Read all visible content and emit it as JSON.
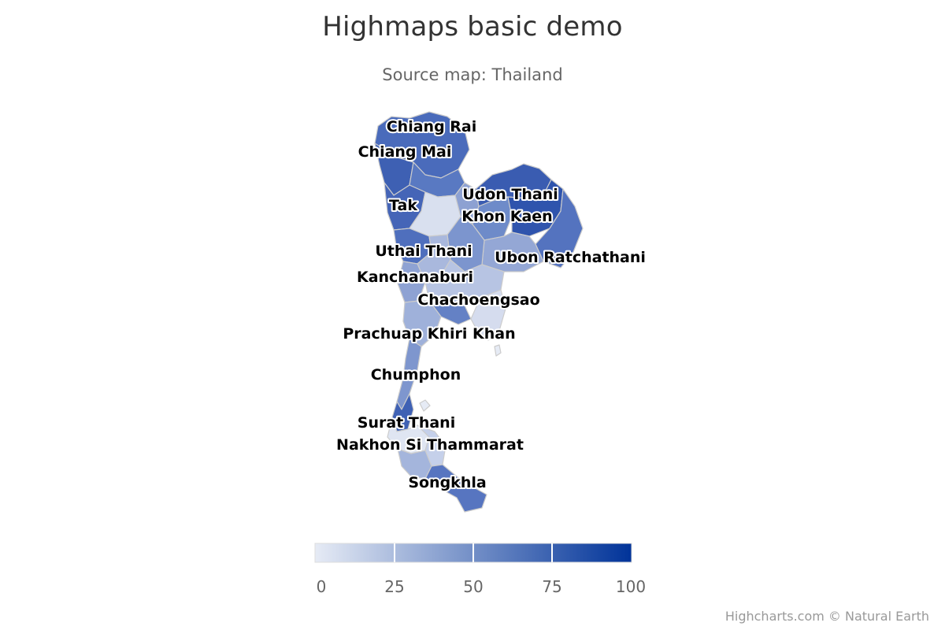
{
  "title": "Highmaps basic demo",
  "subtitle": "Source map: Thailand",
  "credits": "Highcharts.com © Natural Earth",
  "chart_data": {
    "type": "map",
    "map": "Thailand",
    "color_axis": {
      "min": 0,
      "max": 100,
      "min_color": "#e6ebf5",
      "max_color": "#003399",
      "tick_labels": [
        "0",
        "25",
        "50",
        "75",
        "100"
      ],
      "ticks": [
        0,
        25,
        50,
        75,
        100
      ]
    },
    "labeled_regions": [
      {
        "name": "Chiang Rai",
        "value": 72
      },
      {
        "name": "Chiang Mai",
        "value": 70
      },
      {
        "name": "Tak",
        "value": 58
      },
      {
        "name": "Udon Thani",
        "value": 85
      },
      {
        "name": "Khon Kaen",
        "value": 62
      },
      {
        "name": "Uthai Thani",
        "value": 60
      },
      {
        "name": "Ubon Ratchathani",
        "value": 55
      },
      {
        "name": "Kanchanaburi",
        "value": 45
      },
      {
        "name": "Chachoengsao",
        "value": 20
      },
      {
        "name": "Prachuap Khiri Khan",
        "value": 38
      },
      {
        "name": "Chumphon",
        "value": 75
      },
      {
        "name": "Surat Thani",
        "value": 12
      },
      {
        "name": "Nakhon Si Thammarat",
        "value": 20
      },
      {
        "name": "Songkhla",
        "value": 62
      }
    ]
  }
}
